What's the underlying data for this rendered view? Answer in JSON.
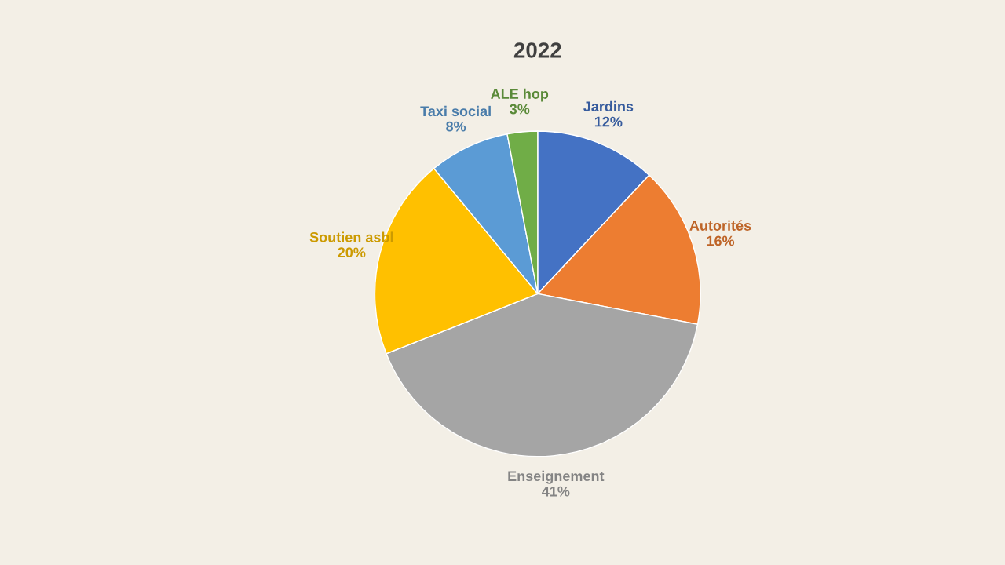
{
  "chart_data": {
    "type": "pie",
    "title": "2022",
    "categories": [
      "Jardins",
      "Autorités",
      "Enseignement",
      "Soutien asbl",
      "Taxi social",
      "ALE hop"
    ],
    "values": [
      12,
      16,
      41,
      20,
      8,
      3
    ],
    "value_labels": [
      "12%",
      "16%",
      "41%",
      "20%",
      "8%",
      "3%"
    ],
    "colors": [
      "#4472c4",
      "#ed7d31",
      "#a5a5a5",
      "#ffc000",
      "#5b9bd5",
      "#70ad47"
    ],
    "legend": false
  }
}
